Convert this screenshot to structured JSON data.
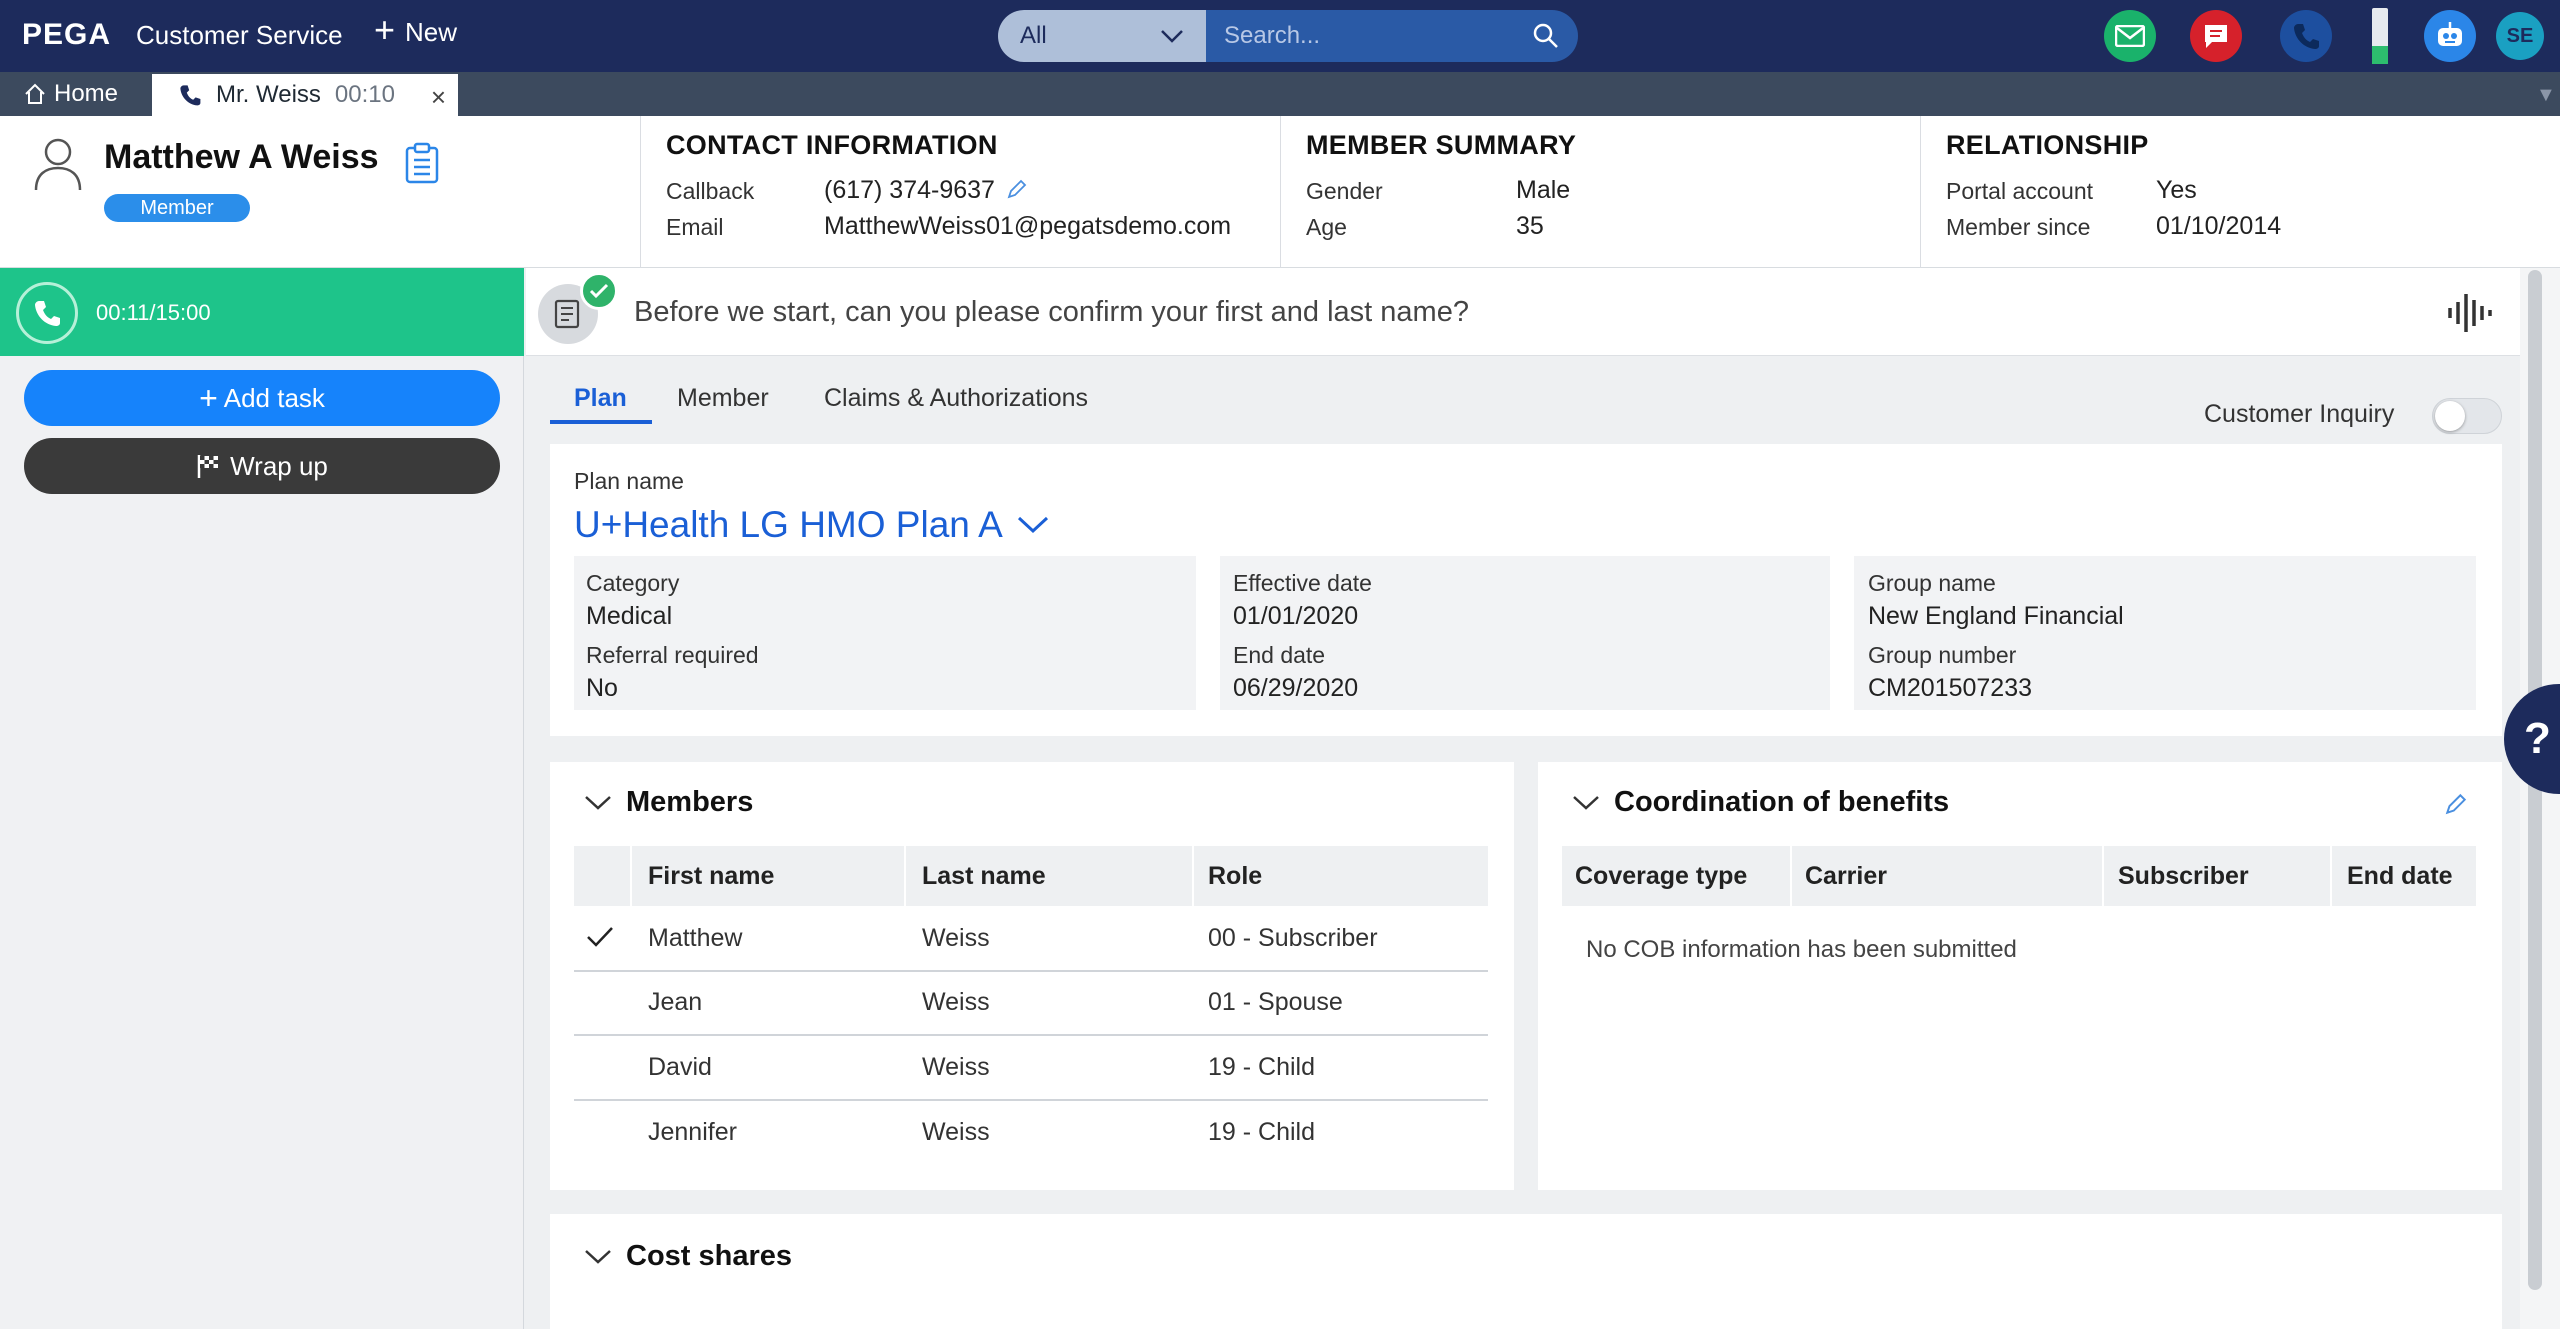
{
  "app": {
    "logo": "PEGA",
    "name": "Customer Service",
    "new_label": "New"
  },
  "search": {
    "scope": "All",
    "placeholder": "Search..."
  },
  "user_initials": "SE",
  "tabs_bar": {
    "home_label": "Home",
    "call_tab_name": "Mr. Weiss",
    "call_tab_timer": "00:10"
  },
  "member": {
    "name": "Matthew A Weiss",
    "badge": "Member"
  },
  "contact": {
    "title": "CONTACT INFORMATION",
    "callback_label": "Callback",
    "callback_value": "(617) 374-9637",
    "email_label": "Email",
    "email_value": "MatthewWeiss01@pegatsdemo.com"
  },
  "summary": {
    "title": "MEMBER SUMMARY",
    "gender_label": "Gender",
    "gender_value": "Male",
    "age_label": "Age",
    "age_value": "35"
  },
  "relationship": {
    "title": "RELATIONSHIP",
    "portal_label": "Portal account",
    "portal_value": "Yes",
    "since_label": "Member since",
    "since_value": "01/10/2014"
  },
  "call": {
    "timer": "00:11/15:00",
    "add_task": "Add task",
    "wrap_up": "Wrap up"
  },
  "script": {
    "text": "Before we start, can you please confirm your first and last name?"
  },
  "content_tabs": [
    "Plan",
    "Member",
    "Claims & Authorizations"
  ],
  "customer_inquiry": {
    "label": "Customer Inquiry",
    "on": false
  },
  "plan": {
    "name_label": "Plan name",
    "name": "U+Health LG HMO Plan A",
    "category_label": "Category",
    "category": "Medical",
    "referral_label": "Referral required",
    "referral": "No",
    "effective_label": "Effective date",
    "effective": "01/01/2020",
    "end_label": "End date",
    "end": "06/29/2020",
    "group_name_label": "Group name",
    "group_name": "New England Financial",
    "group_number_label": "Group number",
    "group_number": "CM201507233"
  },
  "members": {
    "title": "Members",
    "columns": [
      "First name",
      "Last name",
      "Role"
    ],
    "rows": [
      {
        "first": "Matthew",
        "last": "Weiss",
        "role": "00 - Subscriber",
        "selected": true
      },
      {
        "first": "Jean",
        "last": "Weiss",
        "role": "01 - Spouse",
        "selected": false
      },
      {
        "first": "David",
        "last": "Weiss",
        "role": "19 - Child",
        "selected": false
      },
      {
        "first": "Jennifer",
        "last": "Weiss",
        "role": "19 - Child",
        "selected": false
      }
    ]
  },
  "cob": {
    "title": "Coordination of benefits",
    "columns": [
      "Coverage type",
      "Carrier",
      "Subscriber",
      "End date"
    ],
    "empty": "No COB information has been submitted"
  },
  "cost_shares": {
    "title": "Cost shares"
  },
  "help_label": "?",
  "colors": {
    "topbar": "#1d2b5c",
    "accent": "#1a5fd6",
    "call_green": "#1ec48a",
    "add_task": "#1683fb",
    "wrap_up": "#3a3a3a"
  },
  "icons": [
    "mail-icon",
    "chat-icon",
    "phone-icon",
    "battery-icon",
    "bot-icon",
    "search-icon",
    "home-icon",
    "person-icon",
    "clipboard-icon",
    "pencil-icon",
    "script-icon",
    "check-icon",
    "waveform-icon",
    "flag-icon",
    "chevron-down-icon",
    "help-icon"
  ]
}
